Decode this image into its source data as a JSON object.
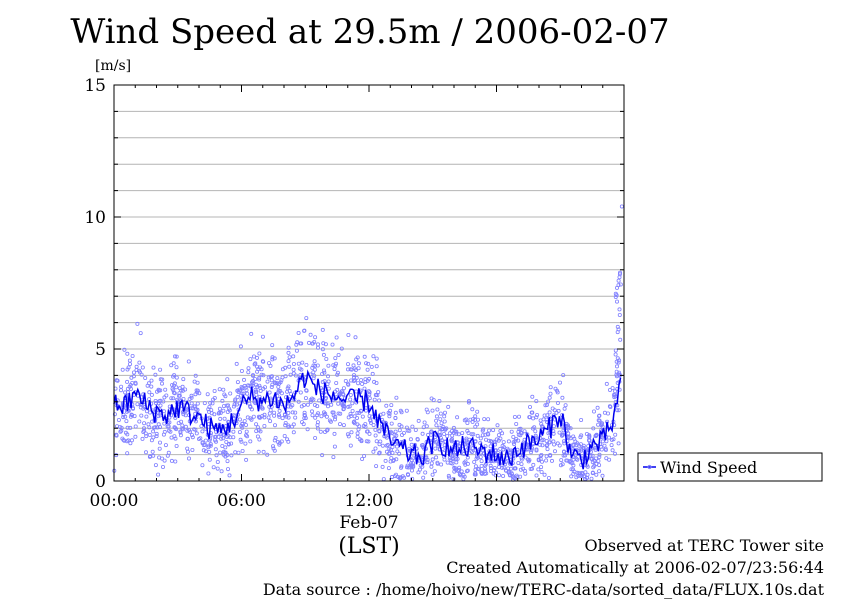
{
  "chart_data": {
    "type": "scatter",
    "title": "Wind Speed at 29.5m / 2006-02-07",
    "ylabel": "[m/s]",
    "xlabel": "(LST)",
    "date_label": "Feb-07",
    "ylim": [
      0,
      15
    ],
    "xlim": [
      0,
      24
    ],
    "y_ticks": [
      0,
      5,
      10,
      15
    ],
    "x_ticks": [
      "00:00",
      "06:00",
      "12:00",
      "18:00"
    ],
    "grid": true,
    "legend": {
      "label": "Wind Speed",
      "position": "right"
    },
    "colors": {
      "line": "#0000ee",
      "points": "#8080ff",
      "grid": "#b4b4b4"
    },
    "series": [
      {
        "name": "Wind Speed",
        "x_hours": [
          0,
          0.5,
          1,
          1.5,
          2,
          2.5,
          3,
          3.5,
          4,
          4.5,
          5,
          5.5,
          6,
          6.5,
          7,
          7.5,
          8,
          8.5,
          9,
          9.5,
          10,
          10.5,
          11,
          11.5,
          12,
          12.5,
          13,
          13.5,
          14,
          14.5,
          15,
          15.5,
          16,
          16.5,
          17,
          17.5,
          18,
          18.5,
          19,
          19.5,
          20,
          20.5,
          21,
          21.5,
          22,
          22.5,
          23,
          23.5,
          23.8
        ],
        "values": [
          3.0,
          2.8,
          3.3,
          2.9,
          2.6,
          2.5,
          2.8,
          2.6,
          2.4,
          2.0,
          1.9,
          2.2,
          2.8,
          3.2,
          3.0,
          3.2,
          2.8,
          3.3,
          4.0,
          3.5,
          3.3,
          3.2,
          3.0,
          3.1,
          3.0,
          2.2,
          1.5,
          1.2,
          1.0,
          0.9,
          1.5,
          1.4,
          1.1,
          1.3,
          1.2,
          1.1,
          1.0,
          0.8,
          1.2,
          1.4,
          1.6,
          2.0,
          2.6,
          1.0,
          0.8,
          1.3,
          1.5,
          2.3,
          3.5
        ]
      }
    ]
  },
  "annotations": {
    "observed": "Observed at TERC Tower site",
    "created": "Created Automatically at 2006-02-07/23:56:44",
    "source": "Data source : /home/hoivo/new/TERC-data/sorted_data/FLUX.10s.dat"
  }
}
